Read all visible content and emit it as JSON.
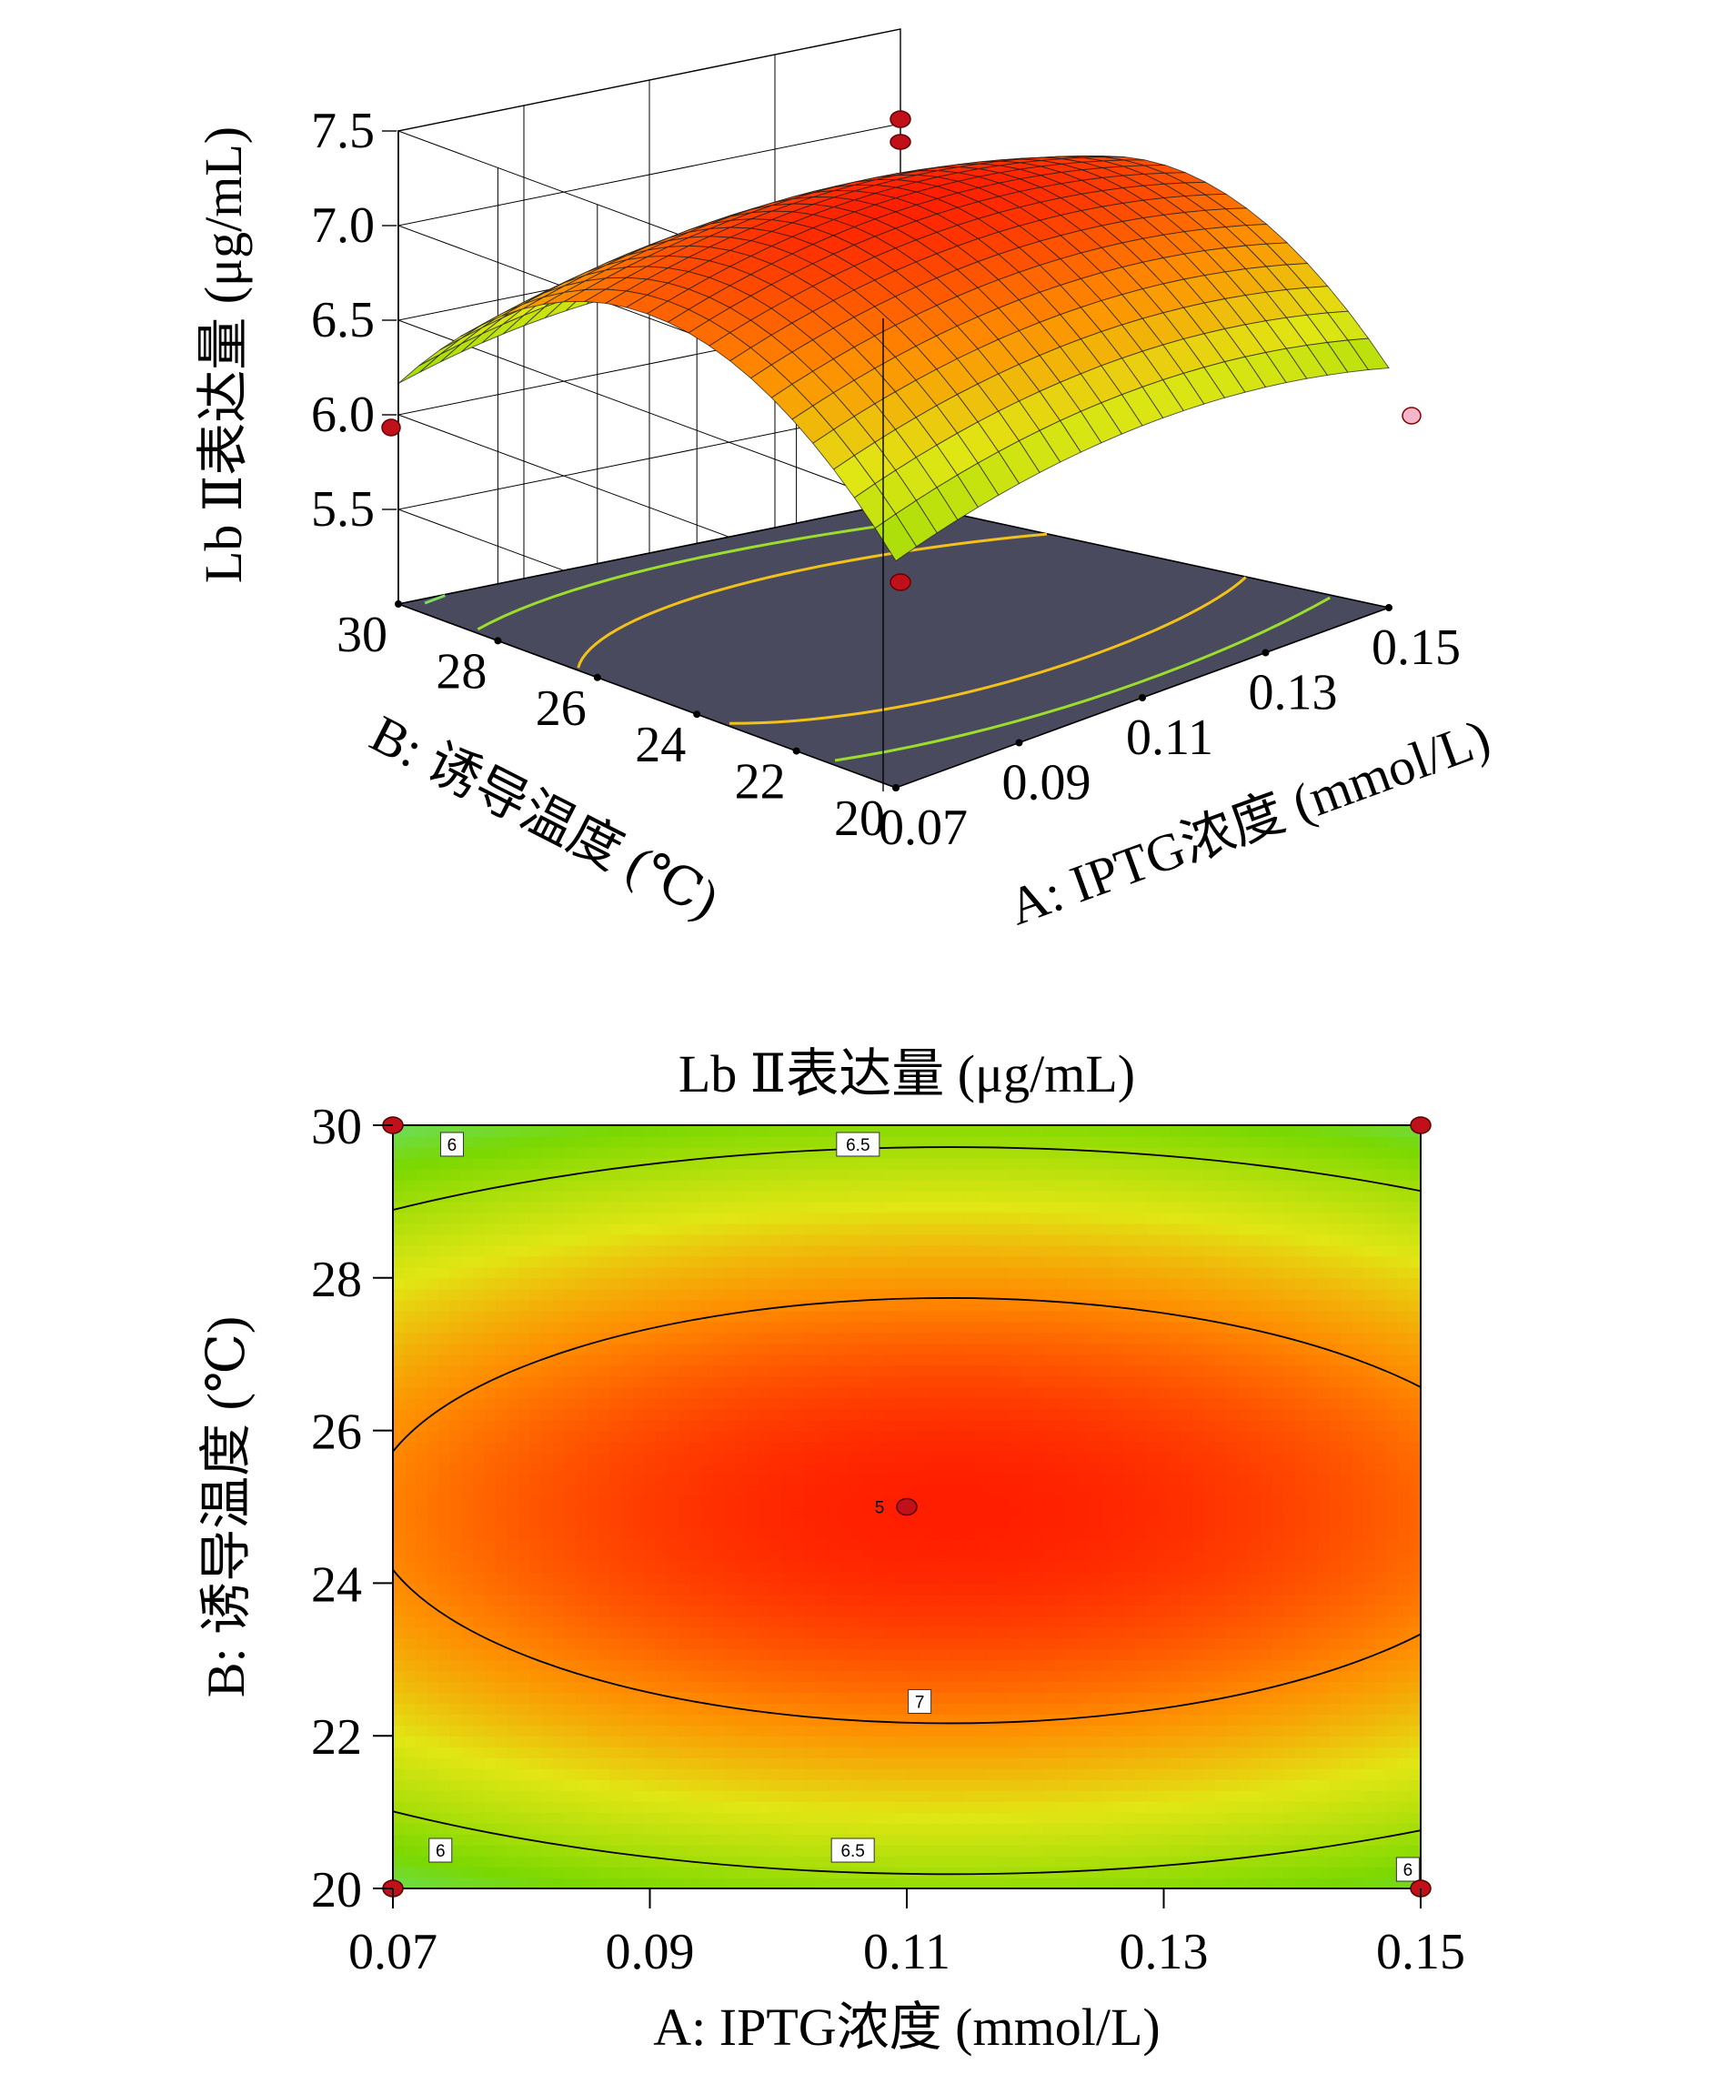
{
  "chart_data": [
    {
      "type": "surface",
      "zlabel": "Lb Ⅱ表达量 (μg/mL)",
      "xlabel": "A: IPTG浓度 (mmol/L)",
      "ylabel": "B: 诱导温度 (℃)",
      "x_ticks": [
        "0.07",
        "0.09",
        "0.11",
        "0.13",
        "0.15"
      ],
      "y_ticks": [
        "20",
        "22",
        "24",
        "26",
        "28",
        "30"
      ],
      "z_ticks": [
        "5.5",
        "6.0",
        "6.5",
        "7.0",
        "7.5"
      ],
      "xlim": [
        0.07,
        0.15
      ],
      "ylim": [
        20,
        30
      ],
      "zlim": [
        5.0,
        7.5
      ],
      "grid": true,
      "model": {
        "center_x": 0.1133,
        "center_y": 24.95,
        "peak": 7.26,
        "ax": 0.001278,
        "by": 0.0335,
        "cxy": 0.0
      },
      "design_points": [
        {
          "x": 0.07,
          "y": 20,
          "z": 5.75
        },
        {
          "x": 0.15,
          "y": 30,
          "z": 5.85
        },
        {
          "x": 0.11,
          "y": 25,
          "z": 7.3
        },
        {
          "x": 0.11,
          "y": 25,
          "z": 7.2
        },
        {
          "x": 0.11,
          "y": 25,
          "z": 7.15
        }
      ],
      "colors": {
        "low": "#1f55e0",
        "mid": "#7ad800",
        "high": "#ff1e00",
        "floor": "#4a4a5e"
      }
    },
    {
      "type": "contour",
      "title": "Lb Ⅱ表达量 (μg/mL)",
      "xlabel": "A: IPTG浓度 (mmol/L)",
      "ylabel": "B: 诱导温度 (℃)",
      "x_ticks": [
        "0.07",
        "0.09",
        "0.11",
        "0.13",
        "0.15"
      ],
      "y_ticks": [
        "20",
        "22",
        "24",
        "26",
        "28",
        "30"
      ],
      "xlim": [
        0.07,
        0.15
      ],
      "ylim": [
        20,
        30
      ],
      "contour_levels": [
        6.0,
        6.5,
        7.0
      ],
      "contour_labels": [
        {
          "text": "6",
          "x": 0.0746,
          "y": 29.75
        },
        {
          "text": "6.5",
          "x": 0.1062,
          "y": 29.75
        },
        {
          "text": "7",
          "x": 0.111,
          "y": 22.45
        },
        {
          "text": "6.5",
          "x": 0.1058,
          "y": 20.5
        },
        {
          "text": "6",
          "x": 0.0737,
          "y": 20.5
        },
        {
          "text": "6",
          "x": 0.149,
          "y": 20.25
        }
      ],
      "center_label": "5",
      "design_points": [
        {
          "x": 0.07,
          "y": 30
        },
        {
          "x": 0.15,
          "y": 30
        },
        {
          "x": 0.07,
          "y": 20
        },
        {
          "x": 0.15,
          "y": 20
        },
        {
          "x": 0.11,
          "y": 25
        }
      ]
    }
  ]
}
